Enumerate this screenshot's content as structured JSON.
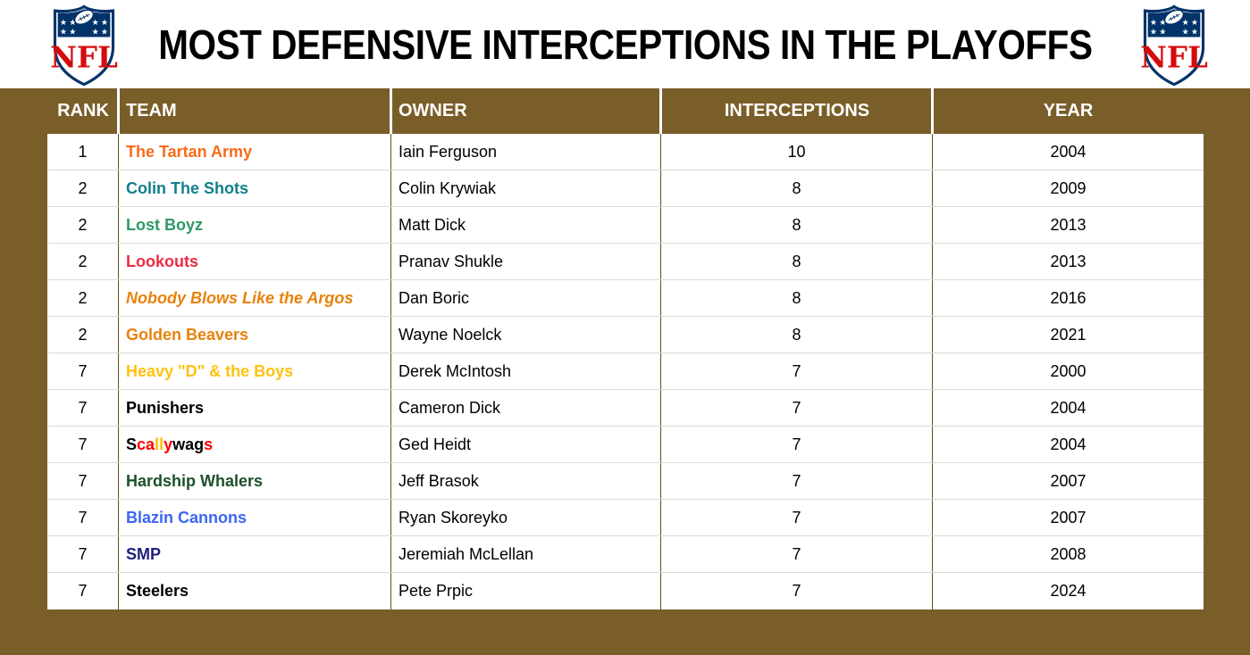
{
  "title": "MOST DEFENSIVE INTERCEPTIONS IN THE PLAYOFFS",
  "logo": {
    "label": "NFL",
    "star_icon": "★",
    "shield_color": "#013369",
    "wordmark_color": "#D50A0A"
  },
  "colors": {
    "frame_brown": "#7A5E2A",
    "header_text": "#FFFFFF",
    "column_divider": "#5C531D",
    "row_divider": "#D9D9D9"
  },
  "table": {
    "columns": [
      {
        "key": "rank",
        "label": "RANK"
      },
      {
        "key": "team",
        "label": "TEAM"
      },
      {
        "key": "owner",
        "label": "OWNER"
      },
      {
        "key": "interceptions",
        "label": "INTERCEPTIONS"
      },
      {
        "key": "year",
        "label": "YEAR"
      }
    ],
    "rows": [
      {
        "rank": "1",
        "team": "The Tartan Army",
        "team_color": "#F96A1B",
        "owner": "Iain Ferguson",
        "interceptions": "10",
        "year": "2004"
      },
      {
        "rank": "2",
        "team": "Colin The Shots",
        "team_color": "#11808C",
        "owner": "Colin Krywiak",
        "interceptions": "8",
        "year": "2009"
      },
      {
        "rank": "2",
        "team": "Lost Boyz",
        "team_color": "#2E9964",
        "owner": "Matt Dick",
        "interceptions": "8",
        "year": "2013"
      },
      {
        "rank": "2",
        "team": "Lookouts",
        "team_color": "#EE2B44",
        "owner": "Pranav Shukle",
        "interceptions": "8",
        "year": "2013"
      },
      {
        "rank": "2",
        "team": "Nobody Blows Like the Argos",
        "team_color": "#E8820C",
        "team_italic": true,
        "owner": "Dan Boric",
        "interceptions": "8",
        "year": "2016"
      },
      {
        "rank": "2",
        "team": "Golden Beavers",
        "team_color": "#E8820C",
        "owner": "Wayne Noelck",
        "interceptions": "8",
        "year": "2021"
      },
      {
        "rank": "7",
        "team": "Heavy \"D\" & the Boys",
        "team_color": "#FFC20E",
        "owner": "Derek McIntosh",
        "interceptions": "7",
        "year": "2000"
      },
      {
        "rank": "7",
        "team": "Punishers",
        "team_color": "#000000",
        "owner": "Cameron Dick",
        "interceptions": "7",
        "year": "2004"
      },
      {
        "rank": "7",
        "team": "Scallywags",
        "team_color": "#FF0000",
        "team_letters": [
          [
            "S",
            "#000000"
          ],
          [
            "c",
            "#FF0000"
          ],
          [
            "a",
            "#FF0000"
          ],
          [
            "l",
            "#FFC000"
          ],
          [
            "l",
            "#FFC000"
          ],
          [
            "y",
            "#FF0000"
          ],
          [
            "w",
            "#000000"
          ],
          [
            "a",
            "#000000"
          ],
          [
            "g",
            "#000000"
          ],
          [
            "s",
            "#FF0000"
          ]
        ],
        "owner": "Ged Heidt",
        "interceptions": "7",
        "year": "2004"
      },
      {
        "rank": "7",
        "team": "Hardship Whalers",
        "team_color": "#1D4F2B",
        "owner": "Jeff Brasok",
        "interceptions": "7",
        "year": "2007"
      },
      {
        "rank": "7",
        "team": "Blazin Cannons",
        "team_color": "#3B66F5",
        "owner": "Ryan Skoreyko",
        "interceptions": "7",
        "year": "2007"
      },
      {
        "rank": "7",
        "team": "SMP",
        "team_color": "#21207D",
        "owner": "Jeremiah McLellan",
        "interceptions": "7",
        "year": "2008"
      },
      {
        "rank": "7",
        "team": "Steelers",
        "team_color": "#000000",
        "owner": "Pete Prpic",
        "interceptions": "7",
        "year": "2024"
      }
    ]
  }
}
